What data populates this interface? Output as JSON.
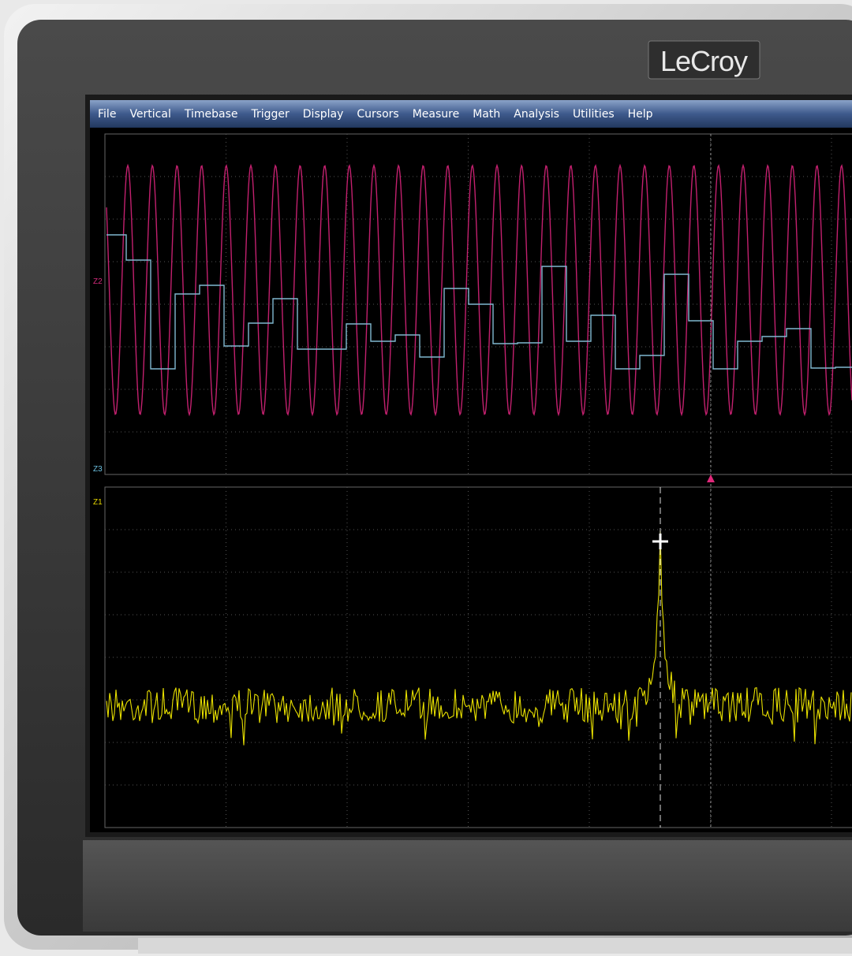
{
  "brand": "LeCroy",
  "menu": [
    "File",
    "Vertical",
    "Timebase",
    "Trigger",
    "Display",
    "Cursors",
    "Measure",
    "Math",
    "Analysis",
    "Utilities",
    "Help"
  ],
  "trace_labels": {
    "top": "Z2",
    "middle": "Z3",
    "bottom": "Z1"
  }
}
